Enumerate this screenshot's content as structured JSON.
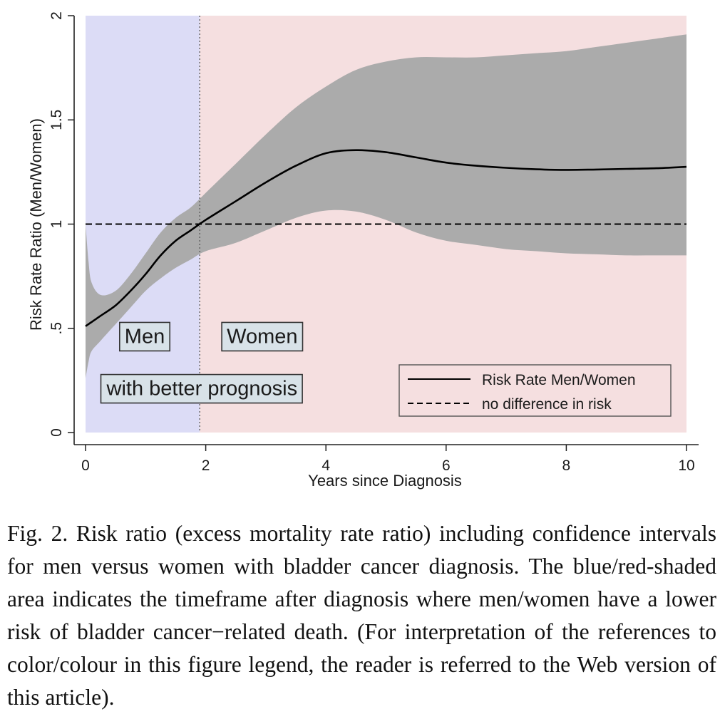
{
  "chart_data": {
    "type": "line",
    "xlabel": "Years since Diagnosis",
    "ylabel": "Risk Rate Ratio (Men/Women)",
    "xlim": [
      0,
      10
    ],
    "ylim": [
      0,
      2
    ],
    "x_ticks": [
      {
        "value": 0,
        "label": "0"
      },
      {
        "value": 2,
        "label": "2"
      },
      {
        "value": 4,
        "label": "4"
      },
      {
        "value": 6,
        "label": "6"
      },
      {
        "value": 8,
        "label": "8"
      },
      {
        "value": 10,
        "label": "10"
      }
    ],
    "y_ticks": [
      {
        "value": 0,
        "label": "0"
      },
      {
        "value": 0.5,
        "label": ".5"
      },
      {
        "value": 1,
        "label": "1"
      },
      {
        "value": 1.5,
        "label": "1.5"
      },
      {
        "value": 2,
        "label": "2"
      }
    ],
    "grid": false,
    "shaded_regions": [
      {
        "from": 0,
        "to": 1.9,
        "color": "#dcdcf6"
      },
      {
        "from": 1.9,
        "to": 10,
        "color": "#f5dfe0"
      }
    ],
    "divider_x": 1.9,
    "series": [
      {
        "name": "Risk Rate Men/Women",
        "style": "solid",
        "color": "#000000",
        "x": [
          0,
          0.1,
          0.25,
          0.5,
          0.75,
          1.0,
          1.25,
          1.5,
          1.75,
          2.0,
          2.5,
          3.0,
          3.5,
          4.0,
          4.5,
          5.0,
          5.5,
          6.0,
          6.5,
          7.0,
          7.5,
          8.0,
          8.5,
          9.0,
          9.5,
          10.0
        ],
        "y": [
          0.51,
          0.53,
          0.56,
          0.61,
          0.68,
          0.76,
          0.85,
          0.92,
          0.97,
          1.02,
          1.11,
          1.2,
          1.28,
          1.34,
          1.355,
          1.345,
          1.32,
          1.295,
          1.28,
          1.27,
          1.263,
          1.26,
          1.262,
          1.265,
          1.268,
          1.275
        ]
      },
      {
        "name": "no difference in risk",
        "style": "dashed",
        "color": "#000000",
        "x": [
          0,
          10
        ],
        "y": [
          1,
          1
        ]
      }
    ],
    "confidence_band": {
      "color": "#ababab",
      "x": [
        0,
        0.05,
        0.1,
        0.25,
        0.5,
        0.75,
        1.0,
        1.25,
        1.5,
        1.75,
        2.0,
        2.5,
        3.0,
        3.5,
        4.0,
        4.5,
        5.0,
        5.5,
        6.0,
        6.5,
        7.0,
        7.5,
        8.0,
        8.5,
        9.0,
        9.5,
        10.0
      ],
      "upper": [
        1.0,
        0.82,
        0.72,
        0.66,
        0.68,
        0.76,
        0.86,
        0.96,
        1.03,
        1.08,
        1.15,
        1.29,
        1.43,
        1.56,
        1.66,
        1.74,
        1.78,
        1.8,
        1.8,
        1.8,
        1.81,
        1.82,
        1.83,
        1.85,
        1.87,
        1.89,
        1.91
      ],
      "lower": [
        0.26,
        0.34,
        0.39,
        0.44,
        0.52,
        0.6,
        0.68,
        0.74,
        0.79,
        0.83,
        0.87,
        0.91,
        0.97,
        1.03,
        1.065,
        1.06,
        1.02,
        0.96,
        0.92,
        0.9,
        0.88,
        0.87,
        0.86,
        0.855,
        0.85,
        0.85,
        0.85
      ]
    },
    "annotations": [
      {
        "text": "Men",
        "x": 0.65,
        "y": 0.46
      },
      {
        "text": "Women",
        "x": 2.35,
        "y": 0.46
      },
      {
        "text": "with better prognosis",
        "x": 0.35,
        "y": 0.21
      }
    ],
    "legend": {
      "placement": "bottom-right",
      "entries": [
        "Risk Rate Men/Women",
        "no difference in risk"
      ]
    }
  },
  "caption": "Fig. 2. Risk ratio (excess mortality rate ratio) including confidence intervals for men versus women with bladder cancer diagnosis. The blue/red-shaded area indicates the timeframe after diagnosis where men/women have a lower risk of bladder cancer−related death. (For interpretation of the references to color/colour in this figure legend, the reader is referred to the Web version of this article)."
}
